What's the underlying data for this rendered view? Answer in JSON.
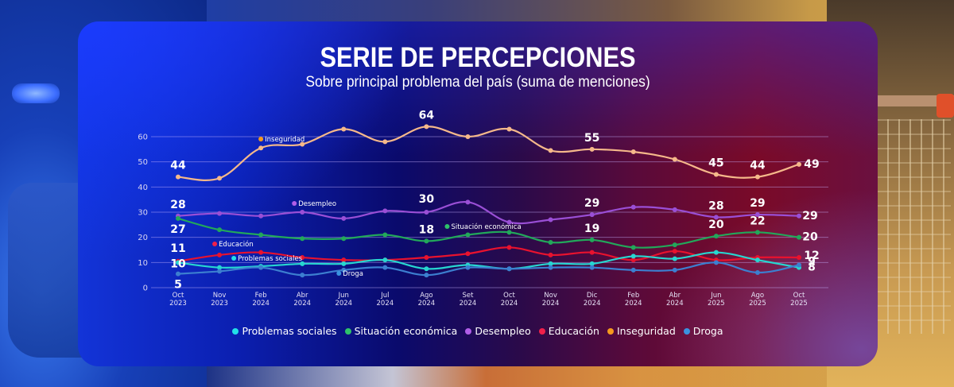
{
  "card": {
    "title": "SERIE DE PERCEPCIONES",
    "subtitle": "Sobre principal problema del país (suma de menciones)"
  },
  "chart_data": {
    "type": "line",
    "title": "SERIE DE PERCEPCIONES",
    "subtitle": "Sobre principal problema del país (suma de menciones)",
    "xlabel": "",
    "ylabel": "",
    "ylim": [
      0,
      60
    ],
    "yticks": [
      0,
      10,
      20,
      30,
      40,
      50,
      60
    ],
    "grid": true,
    "legend_position": "bottom",
    "categories": [
      [
        "Oct",
        "2023"
      ],
      [
        "Nov",
        "2023"
      ],
      [
        "Feb",
        "2024"
      ],
      [
        "Abr",
        "2024"
      ],
      [
        "Jun",
        "2024"
      ],
      [
        "Jul",
        "2024"
      ],
      [
        "Ago",
        "2024"
      ],
      [
        "Set",
        "2024"
      ],
      [
        "Oct",
        "2024"
      ],
      [
        "Nov",
        "2024"
      ],
      [
        "Dic",
        "2024"
      ],
      [
        "Feb",
        "2024"
      ],
      [
        "Abr",
        "2024"
      ],
      [
        "Jun",
        "2025"
      ],
      [
        "Ago",
        "2025"
      ],
      [
        "Oct",
        "2025"
      ]
    ],
    "series": [
      {
        "name": "Inseguridad",
        "color": "#f5b88a",
        "legend_color": "#f59a1e",
        "values": [
          44,
          43.5,
          55.5,
          57,
          63,
          58,
          64,
          60,
          63,
          54.5,
          55,
          54,
          51,
          45,
          44,
          49
        ],
        "labels": [
          {
            "i": 0,
            "text": "44"
          },
          {
            "i": 6,
            "text": "64"
          },
          {
            "i": 10,
            "text": "55"
          },
          {
            "i": 13,
            "text": "45"
          },
          {
            "i": 14,
            "text": "44"
          },
          {
            "i": 15,
            "text": "49"
          }
        ],
        "inline_label": {
          "i": 2,
          "text": "Inseguridad"
        }
      },
      {
        "name": "Desempleo",
        "color": "#9a4fd6",
        "legend_color": "#b05ee8",
        "values": [
          28.5,
          29.5,
          28.5,
          30,
          27.5,
          30.5,
          30,
          34,
          26,
          27,
          29,
          32,
          31,
          28,
          29,
          28.5
        ],
        "labels": [
          {
            "i": 0,
            "text": "28"
          },
          {
            "i": 6,
            "text": "30"
          },
          {
            "i": 10,
            "text": "29"
          },
          {
            "i": 13,
            "text": "28"
          },
          {
            "i": 14,
            "text": "29"
          },
          {
            "i": 15,
            "text": "29"
          }
        ],
        "inline_label": {
          "i": 3,
          "text": "Desempleo"
        }
      },
      {
        "name": "Situación económica",
        "color": "#22a85a",
        "legend_color": "#2ec26a",
        "values": [
          27.5,
          23,
          21,
          19.5,
          19.5,
          21,
          18.5,
          21,
          22,
          18,
          19,
          16,
          17,
          20.5,
          22,
          20
        ],
        "labels": [
          {
            "i": 0,
            "text": "27"
          },
          {
            "i": 6,
            "text": "18"
          },
          {
            "i": 10,
            "text": "19"
          },
          {
            "i": 13,
            "text": "20"
          },
          {
            "i": 14,
            "text": "22"
          },
          {
            "i": 15,
            "text": "20"
          }
        ],
        "inline_label": {
          "i": 7,
          "text": "Situación económica"
        }
      },
      {
        "name": "Educación",
        "color": "#e8122e",
        "legend_color": "#f0204a",
        "values": [
          10.5,
          13,
          14,
          12,
          11,
          11,
          12,
          13.5,
          16,
          13,
          14,
          11,
          14.5,
          11,
          12,
          12
        ],
        "labels": [
          {
            "i": 0,
            "text": "11"
          },
          {
            "i": 15,
            "text": "12"
          }
        ],
        "inline_label": {
          "i": 1,
          "text": "Educación"
        }
      },
      {
        "name": "Problemas sociales",
        "color": "#27d6d0",
        "legend_color": "#22e0e8",
        "values": [
          10,
          8,
          8.5,
          9.5,
          9.5,
          11,
          7.5,
          9,
          7.5,
          9.5,
          9.5,
          12.5,
          11.5,
          14,
          11,
          8
        ],
        "labels": [
          {
            "i": 0,
            "text": "10"
          },
          {
            "i": 15,
            "text": "8"
          }
        ],
        "inline_label": {
          "i": 2,
          "text": "Problemas sociales"
        }
      },
      {
        "name": "Droga",
        "color": "#3c7fd0",
        "legend_color": "#3a92e0",
        "values": [
          5.5,
          6.5,
          8,
          5,
          7,
          8,
          5,
          8,
          7.5,
          8,
          8,
          7,
          7,
          10,
          6,
          9
        ],
        "labels": [
          {
            "i": 0,
            "text": "5"
          },
          {
            "i": 15,
            "text": "9"
          }
        ],
        "inline_label": {
          "i": 4,
          "text": "Droga"
        }
      }
    ],
    "legend": [
      {
        "name": "Problemas sociales",
        "color": "#22e0e8"
      },
      {
        "name": "Situación económica",
        "color": "#2ec26a"
      },
      {
        "name": "Desempleo",
        "color": "#b05ee8"
      },
      {
        "name": "Educación",
        "color": "#f0204a"
      },
      {
        "name": "Inseguridad",
        "color": "#f59a1e"
      },
      {
        "name": "Droga",
        "color": "#3a92e0"
      }
    ]
  }
}
